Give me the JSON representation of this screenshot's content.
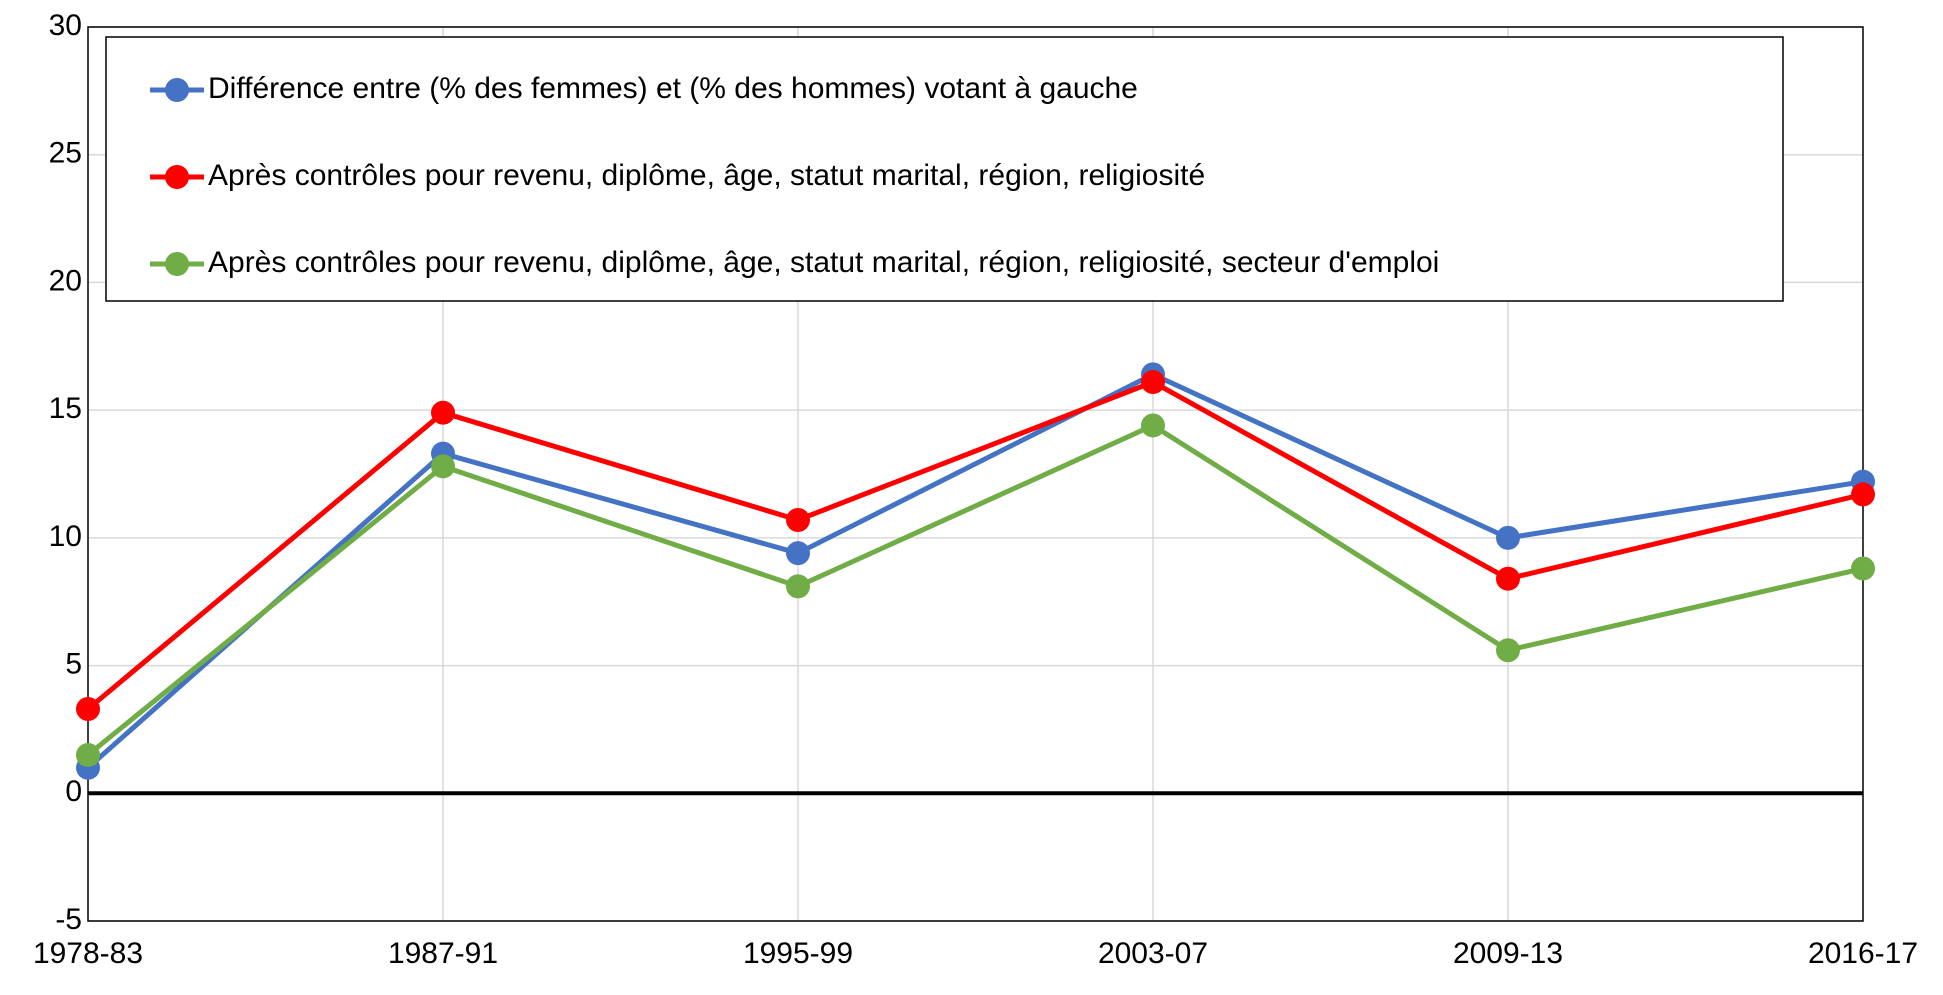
{
  "chart_data": {
    "type": "line",
    "categories": [
      "1978-83",
      "1987-91",
      "1995-99",
      "2003-07",
      "2009-13",
      "2016-17"
    ],
    "series": [
      {
        "name": "Différence entre (% des femmes) et (% des hommes) votant à gauche",
        "color": "#4472c4",
        "values": [
          1.0,
          13.3,
          9.4,
          16.4,
          10.0,
          12.2
        ]
      },
      {
        "name": "Après contrôles pour revenu, diplôme, âge, statut marital, région, religiosité",
        "color": "#ff0000",
        "values": [
          3.3,
          14.9,
          10.7,
          16.1,
          8.4,
          11.7
        ]
      },
      {
        "name": "Après contrôles pour revenu, diplôme, âge, statut marital, région, religiosité, secteur d'emploi",
        "color": "#70ad47",
        "values": [
          1.5,
          12.8,
          8.1,
          14.4,
          5.6,
          8.8
        ]
      }
    ],
    "ylim": [
      -5,
      30
    ],
    "yticks": [
      -5,
      0,
      5,
      10,
      15,
      20,
      25,
      30
    ],
    "grid": true,
    "legend": "upper left"
  }
}
